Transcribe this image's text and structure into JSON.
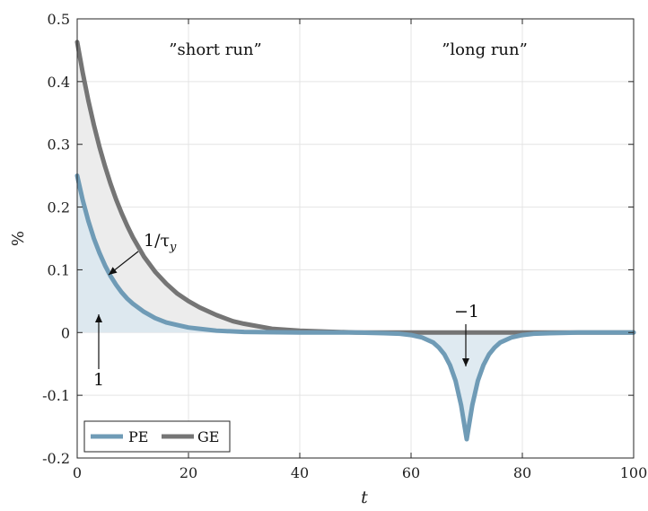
{
  "chart_data": {
    "type": "line",
    "xlabel": "t",
    "ylabel": "%",
    "xlim": [
      0,
      100
    ],
    "ylim": [
      -0.2,
      0.5
    ],
    "x_ticks": [
      0,
      20,
      40,
      60,
      80,
      100
    ],
    "y_ticks": [
      -0.2,
      -0.1,
      0,
      0.1,
      0.2,
      0.3,
      0.4,
      0.5
    ],
    "grid": true,
    "legend_position": "bottom-left",
    "series": [
      {
        "name": "PE",
        "color": "#6f9bb6",
        "x": [
          0,
          1,
          2,
          3,
          4,
          5,
          6,
          7,
          8,
          9,
          10,
          12,
          14,
          16,
          18,
          20,
          22,
          25,
          30,
          40,
          50,
          55,
          58,
          60,
          62,
          64,
          65,
          66,
          67,
          68,
          69,
          70,
          71,
          72,
          73,
          74,
          75,
          76,
          78,
          80,
          82,
          85,
          90,
          100
        ],
        "y": [
          0.25,
          0.211,
          0.178,
          0.15,
          0.127,
          0.107,
          0.09,
          0.076,
          0.064,
          0.054,
          0.046,
          0.033,
          0.023,
          0.016,
          0.012,
          0.008,
          0.006,
          0.003,
          0.001,
          0,
          0,
          -0.001,
          -0.002,
          -0.004,
          -0.008,
          -0.016,
          -0.024,
          -0.035,
          -0.052,
          -0.077,
          -0.116,
          -0.17,
          -0.116,
          -0.077,
          -0.052,
          -0.035,
          -0.024,
          -0.016,
          -0.008,
          -0.004,
          -0.002,
          -0.001,
          0,
          0
        ]
      },
      {
        "name": "GE",
        "color": "#757575",
        "x": [
          0,
          1,
          2,
          3,
          4,
          5,
          6,
          7,
          8,
          9,
          10,
          12,
          14,
          16,
          18,
          20,
          22,
          25,
          28,
          30,
          35,
          40,
          50,
          60,
          70,
          80,
          100
        ],
        "y": [
          0.463,
          0.414,
          0.37,
          0.331,
          0.296,
          0.265,
          0.237,
          0.212,
          0.19,
          0.17,
          0.152,
          0.121,
          0.097,
          0.078,
          0.062,
          0.05,
          0.04,
          0.028,
          0.018,
          0.014,
          0.006,
          0.003,
          0,
          0,
          0,
          0,
          0
        ]
      }
    ],
    "annotations": {
      "short_run": "”short run”",
      "long_run": "”long run”",
      "inv_tau_main": "1/τ",
      "inv_tau_sub": "y",
      "one": "1",
      "minus_one": "−1"
    }
  }
}
